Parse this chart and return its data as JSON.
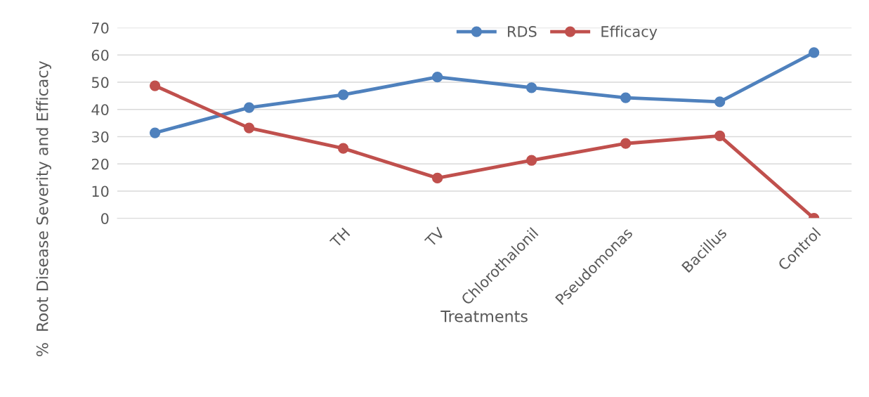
{
  "chart_data": {
    "type": "line",
    "xlabel": "Treatments",
    "ylabel": "%  Root Disease Severity and Efficacy",
    "categories": [
      null,
      null,
      "TH",
      "TV",
      "Chlorothalonil",
      "Pseudomonas",
      "Bacillus",
      "Control"
    ],
    "series": [
      {
        "name": "RDS",
        "color": "#4f81bd",
        "values": [
          31.4,
          40.7,
          45.4,
          51.9,
          48.0,
          44.3,
          42.8,
          60.9
        ]
      },
      {
        "name": "Efficacy",
        "color": "#c0504d",
        "values": [
          48.7,
          33.2,
          25.7,
          14.8,
          21.3,
          27.5,
          30.3,
          0
        ]
      }
    ],
    "ylim": [
      0,
      70
    ],
    "yticks": [
      0,
      10,
      20,
      30,
      40,
      50,
      60,
      70
    ],
    "grid": "y",
    "legend": "top",
    "marker": "circle",
    "line_style": "solid"
  }
}
